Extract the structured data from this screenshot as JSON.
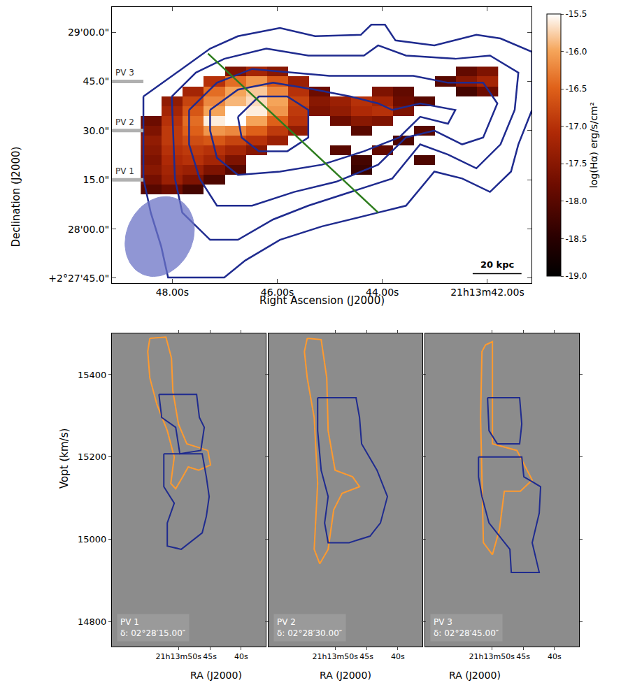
{
  "chart_data": [
    {
      "type": "heatmap",
      "xlabel": "Right Ascension (J2000)",
      "ylabel": "Declination (J2000)",
      "xlim": [
        49.15,
        41.16
      ],
      "ylim": [
        -16.5,
        67.7
      ],
      "xticks": [
        {
          "value": 48,
          "label": "48.00s"
        },
        {
          "value": 46,
          "label": "46.00s"
        },
        {
          "value": 44,
          "label": "44.00s"
        },
        {
          "value": 42,
          "label": "21h13m42.00s"
        }
      ],
      "yticks": [
        {
          "value": -15,
          "label": "+2°27'45.0\""
        },
        {
          "value": 0,
          "label": "28'00.0\""
        },
        {
          "value": 15,
          "label": "15.0\""
        },
        {
          "value": 30,
          "label": "30.0\""
        },
        {
          "value": 45,
          "label": "45.0\""
        },
        {
          "value": 60,
          "label": "29'00.0\""
        }
      ],
      "colorbar_title": "log(Hα) erg/s/cm²",
      "colorbar_range": [
        -19.0,
        -15.5
      ],
      "colorbar_ticks": [
        {
          "value": -19,
          "label": "-19.0"
        },
        -18.5,
        {
          "value": -18,
          "label": "-18.0"
        },
        -17.5,
        {
          "value": -17,
          "label": "-17.0"
        },
        -16.5,
        {
          "value": -16,
          "label": "-16.0"
        },
        -15.5
      ],
      "x": [
        48.4,
        48.0,
        47.6,
        47.2,
        46.8,
        46.4,
        46.0,
        45.6,
        45.2,
        44.8,
        44.4,
        44.0,
        43.6,
        43.2,
        42.8,
        42.4,
        42.0
      ],
      "y": [
        6,
        9,
        12,
        15,
        18,
        21,
        24,
        27,
        30,
        33,
        36,
        39,
        42,
        45,
        48
      ],
      "z": [
        [
          null,
          null,
          null,
          null,
          null,
          null,
          null,
          null,
          null,
          null,
          null,
          null,
          null,
          null,
          null,
          null,
          null
        ],
        [
          null,
          null,
          null,
          null,
          null,
          null,
          null,
          null,
          null,
          null,
          null,
          null,
          null,
          null,
          null,
          null,
          null
        ],
        [
          -18.0,
          -17.8,
          -18.2,
          null,
          null,
          null,
          null,
          null,
          null,
          null,
          null,
          null,
          null,
          null,
          null,
          null,
          null
        ],
        [
          -17.7,
          -17.3,
          -17.6,
          -18.1,
          null,
          null,
          null,
          null,
          null,
          null,
          null,
          null,
          null,
          null,
          null,
          null,
          null
        ],
        [
          -17.5,
          -17.2,
          -17.3,
          -17.6,
          -18.0,
          null,
          null,
          null,
          null,
          null,
          -18.3,
          null,
          null,
          null,
          null,
          null,
          null
        ],
        [
          -17.6,
          -17.1,
          -17.0,
          -17.2,
          -17.6,
          null,
          null,
          null,
          null,
          null,
          -18.2,
          null,
          null,
          -18.1,
          null,
          null,
          null
        ],
        [
          -17.5,
          -17.0,
          -16.9,
          -17.0,
          -17.2,
          -17.5,
          null,
          null,
          null,
          -18.0,
          null,
          -17.9,
          null,
          null,
          null,
          null,
          null
        ],
        [
          -17.4,
          -16.9,
          -16.7,
          -16.6,
          -16.8,
          -17.0,
          -17.3,
          null,
          null,
          null,
          null,
          null,
          -18.1,
          null,
          null,
          null,
          null
        ],
        [
          -17.6,
          -16.9,
          -16.5,
          -16.1,
          -16.2,
          -16.5,
          -16.9,
          -17.4,
          null,
          null,
          -18.0,
          null,
          null,
          -18.0,
          null,
          null,
          null
        ],
        [
          -17.8,
          -17.0,
          -16.4,
          -15.6,
          -15.5,
          -16.0,
          -16.5,
          -17.0,
          null,
          -17.8,
          -17.5,
          -17.6,
          null,
          null,
          null,
          null,
          null
        ],
        [
          null,
          -17.2,
          -16.6,
          -16.0,
          -15.5,
          -15.6,
          -16.1,
          -16.9,
          -17.6,
          -17.4,
          -17.1,
          -17.0,
          -17.6,
          null,
          null,
          null,
          null
        ],
        [
          null,
          -17.4,
          -16.8,
          -16.2,
          -15.9,
          -15.7,
          -16.0,
          -16.8,
          -17.5,
          -17.3,
          -17.0,
          -17.2,
          -17.8,
          -18.0,
          null,
          null,
          null
        ],
        [
          null,
          null,
          -17.2,
          -16.4,
          -16.0,
          -15.8,
          -16.2,
          -17.0,
          -17.8,
          null,
          null,
          -17.6,
          -17.9,
          null,
          null,
          -18.2,
          -17.8
        ],
        [
          null,
          null,
          null,
          -17.0,
          -16.4,
          -16.1,
          -16.6,
          -17.3,
          null,
          null,
          null,
          null,
          null,
          null,
          -18.0,
          -17.5,
          -17.2
        ],
        [
          null,
          null,
          null,
          null,
          -17.6,
          -17.2,
          -17.5,
          null,
          null,
          null,
          null,
          null,
          null,
          null,
          null,
          -17.9,
          -17.6
        ]
      ],
      "contours": {
        "color": "#1f2b8f",
        "lines": [
          {
            "x": [
              48.55,
              47.81,
              47.28,
              46.75,
              45.95,
              45.28,
              44.41,
              44.21,
              43.95,
              43.75,
              43.01,
              42.21,
              41.75,
              41.15,
              41.15,
              41.41,
              41.55,
              41.95,
              42.48,
              43.01,
              43.55,
              44.08,
              44.61,
              45.15,
              45.95,
              46.61,
              47.01,
              48.08,
              48.21,
              48.41,
              48.55
            ],
            "y": [
              40.4,
              48.8,
              55.0,
              58.8,
              61.3,
              58.8,
              59.2,
              62.3,
              62.3,
              57.5,
              56.0,
              59.2,
              58.1,
              54.0,
              36.3,
              25.8,
              17.5,
              11.3,
              15.4,
              17.5,
              7.1,
              5.0,
              2.9,
              0.8,
              -3.3,
              -9.6,
              -14.8,
              -14.8,
              -5.4,
              5.0,
              15.4
            ]
          },
          {
            "x": [
              48.01,
              47.55,
              47.01,
              46.21,
              45.41,
              44.35,
              44.08,
              43.55,
              42.61,
              41.95,
              41.41,
              41.48,
              41.75,
              42.21,
              42.75,
              43.28,
              43.81,
              44.61,
              45.41,
              46.08,
              46.75,
              47.28,
              47.81,
              47.95
            ],
            "y": [
              40.4,
              47.7,
              51.9,
              55.0,
              52.9,
              52.9,
              56.0,
              52.9,
              51.9,
              52.9,
              47.7,
              36.3,
              25.8,
              18.5,
              22.7,
              25.8,
              15.4,
              11.3,
              7.1,
              2.9,
              -3.3,
              -3.3,
              5.0,
              15.4
            ]
          },
          {
            "x": [
              47.68,
              47.15,
              46.48,
              45.68,
              45.01,
              44.08,
              43.41,
              42.75,
              42.08,
              41.81,
              42.08,
              42.48,
              43.01,
              43.55,
              44.08,
              44.88,
              45.68,
              46.48,
              47.15,
              47.48,
              47.68
            ],
            "y": [
              36.3,
              44.6,
              48.8,
              47.7,
              46.7,
              46.7,
              46.7,
              44.6,
              44.6,
              38.3,
              27.9,
              25.8,
              30.0,
              27.9,
              19.6,
              14.4,
              11.3,
              7.1,
              7.1,
              15.4,
              25.8
            ]
          },
          {
            "x": [
              47.28,
              46.75,
              46.08,
              45.28,
              44.61,
              44.08,
              43.81,
              43.28,
              42.61,
              42.75,
              43.28,
              43.68,
              44.35,
              45.15,
              45.95,
              46.75,
              47.15,
              47.28
            ],
            "y": [
              36.3,
              42.5,
              44.6,
              42.5,
              40.4,
              38.3,
              36.3,
              38.3,
              36.3,
              32.1,
              34.2,
              27.9,
              23.7,
              19.6,
              17.5,
              16.5,
              21.7,
              30.0
            ]
          },
          {
            "x": [
              46.75,
              46.35,
              45.81,
              45.41,
              45.41,
              45.81,
              46.35,
              46.68
            ],
            "y": [
              34.2,
              40.4,
              40.4,
              36.3,
              27.9,
              23.7,
              23.7,
              27.9
            ]
          }
        ]
      },
      "slit": {
        "x": [
          47.32,
          44.08
        ],
        "y": [
          53.5,
          5.0
        ],
        "color": "#2e7d1e"
      },
      "beam": {
        "x": 48.24,
        "y": -2.3,
        "major": 25,
        "minor": 19,
        "pa": -20,
        "color": "#6b73c6"
      },
      "scalebar": {
        "label": "20 kpc",
        "x": [
          42.28,
          41.35
        ],
        "y": -13.6
      },
      "pv_marks": [
        {
          "label": "PV 3",
          "y": 45
        },
        {
          "label": "PV 2",
          "y": 30
        },
        {
          "label": "PV 1",
          "y": 15
        }
      ]
    },
    {
      "type": "pv",
      "label": "PV 1",
      "dec_label": "δ: 02°28′15.00″",
      "xlabel": "RA (J2000)",
      "ylabel": "Vopt (km/s)",
      "xlim": [
        60.6,
        36.1
      ],
      "ylim": [
        14740,
        15500
      ],
      "xticks": [
        {
          "value": 50,
          "label": "21h13m50s"
        },
        {
          "value": 45,
          "label": "45s"
        },
        {
          "value": 40,
          "label": "40s"
        }
      ],
      "yticks": [
        14800,
        15000,
        15200,
        15400
      ],
      "contours": [
        {
          "color": "#ff9a2e",
          "x": [
            54.56,
            52.0,
            51.11,
            50.89,
            50.0,
            48.67,
            45.33,
            44.89,
            46.78,
            48.44,
            49.33,
            50.44,
            51.22,
            50.67,
            51.78,
            53.44,
            54.56,
            54.89
          ],
          "y": [
            15488,
            15491,
            15440,
            15360,
            15280,
            15232,
            15216,
            15181,
            15168,
            15176,
            15152,
            15123,
            15136,
            15200,
            15264,
            15328,
            15392,
            15456
          ]
        },
        {
          "color": "#1f2b8f",
          "x": [
            53.11,
            47.11,
            46.67,
            45.89,
            46.44,
            49.78,
            50.44,
            52.67
          ],
          "y": [
            15352,
            15352,
            15296,
            15272,
            15216,
            15208,
            15272,
            15296
          ]
        },
        {
          "color": "#1f2b8f",
          "x": [
            52.33,
            46.22,
            45.56,
            45.11,
            45.56,
            46.22,
            49.56,
            51.78,
            51.78,
            50.67,
            52.33
          ],
          "y": [
            15208,
            15208,
            15152,
            15104,
            15056,
            15016,
            14976,
            14984,
            15040,
            15088,
            15128
          ]
        }
      ]
    },
    {
      "type": "pv",
      "label": "PV 2",
      "dec_label": "δ: 02°28′30.00″",
      "xlabel": "RA (J2000)",
      "tick_labels": "x",
      "xlim": [
        60.6,
        36.1
      ],
      "ylim": [
        14740,
        15500
      ],
      "xticks": [
        {
          "value": 50,
          "label": "21h13m50s"
        },
        {
          "value": 45,
          "label": "45s"
        },
        {
          "value": 40,
          "label": "40s"
        }
      ],
      "yticks": [
        14800,
        15000,
        15200,
        15400
      ],
      "contours": [
        {
          "color": "#ff9a2e",
          "x": [
            54.44,
            52.22,
            51.33,
            51.11,
            50.0,
            47.22,
            46.11,
            48.89,
            50.22,
            51.11,
            52.44,
            53.33,
            52.78,
            53.33,
            54.44,
            54.89
          ],
          "y": [
            15488,
            15485,
            15392,
            15264,
            15168,
            15152,
            15128,
            15112,
            15072,
            14976,
            14941,
            14976,
            15136,
            15296,
            15392,
            15456
          ]
        },
        {
          "color": "#1f2b8f",
          "x": [
            52.78,
            46.67,
            46.11,
            45.78,
            43.33,
            41.67,
            42.78,
            44.44,
            47.78,
            51.11,
            51.67,
            51.11,
            52.22,
            52.78
          ],
          "y": [
            15344,
            15344,
            15296,
            15232,
            15168,
            15104,
            15040,
            15008,
            14992,
            14992,
            15040,
            15104,
            15168,
            15264
          ]
        }
      ]
    },
    {
      "type": "pv",
      "label": "PV 3",
      "dec_label": "δ: 02°28′45.00″",
      "xlabel": "RA (J2000)",
      "tick_labels": "x",
      "xlim": [
        60.6,
        36.1
      ],
      "ylim": [
        14740,
        15500
      ],
      "xticks": [
        {
          "value": 50,
          "label": "21h13m50s"
        },
        {
          "value": 45,
          "label": "45s"
        },
        {
          "value": 40,
          "label": "40s"
        }
      ],
      "yticks": [
        14800,
        15000,
        15200,
        15400
      ],
      "contours": [
        {
          "color": "#ff9a2e",
          "x": [
            51.0,
            49.89,
            49.89,
            49.89,
            46.0,
            43.56,
            45.44,
            48.0,
            48.78,
            49.89,
            51.33,
            51.56,
            51.78,
            51.56
          ],
          "y": [
            15472,
            15480,
            15360,
            15232,
            15216,
            15144,
            15117,
            15117,
            15024,
            14963,
            14992,
            15136,
            15296,
            15456
          ]
        },
        {
          "color": "#1f2b8f",
          "x": [
            50.67,
            45.56,
            45.22,
            45.56,
            49.11,
            50.44
          ],
          "y": [
            15344,
            15344,
            15280,
            15232,
            15232,
            15264
          ]
        },
        {
          "color": "#1f2b8f",
          "x": [
            52.11,
            45.22,
            44.89,
            42.22,
            42.44,
            43.56,
            42.44,
            46.89,
            47.11,
            50.44,
            51.56,
            52.11
          ],
          "y": [
            15200,
            15200,
            15152,
            15128,
            15064,
            14992,
            14920,
            14920,
            14976,
            15040,
            15104,
            15152
          ]
        }
      ]
    }
  ]
}
